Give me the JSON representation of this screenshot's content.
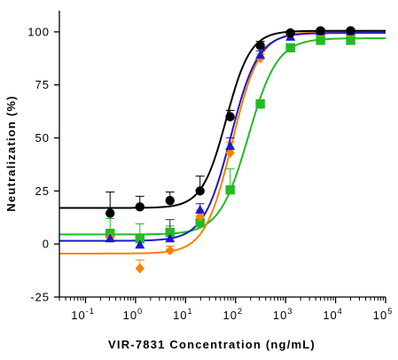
{
  "chart_data": {
    "type": "scatter",
    "title": "",
    "xlabel": "VIR-7831 Concentration (ng/mL)",
    "ylabel": "Neutralization (%)",
    "xscale": "log",
    "xlim": [
      0.03,
      100000
    ],
    "ylim": [
      -25,
      110
    ],
    "y_ticks": [
      -25,
      0,
      25,
      50,
      75,
      100
    ],
    "x_ticks": [
      {
        "value": 0.1,
        "base": "10",
        "exp": "-1"
      },
      {
        "value": 1,
        "base": "10",
        "exp": "0"
      },
      {
        "value": 10,
        "base": "10",
        "exp": "1"
      },
      {
        "value": 100,
        "base": "10",
        "exp": "2"
      },
      {
        "value": 1000,
        "base": "10",
        "exp": "3"
      },
      {
        "value": 10000,
        "base": "10",
        "exp": "4"
      },
      {
        "value": 100000,
        "base": "10",
        "exp": "5"
      }
    ],
    "legend": "none",
    "grid": false,
    "curve": "four-parameter logistic fit",
    "series": [
      {
        "marker": "square",
        "color": "#22bb22",
        "x": [
          0.31,
          1.22,
          4.88,
          19.5,
          78,
          312,
          1250,
          5000,
          20000
        ],
        "y": [
          5,
          2.5,
          5.5,
          10,
          25.5,
          66,
          92.5,
          96,
          96
        ],
        "err": [
          7,
          7,
          3,
          3,
          10,
          2,
          1.5,
          1,
          1
        ],
        "fit": {
          "bottom": 4.5,
          "top": 97,
          "ec50": 180,
          "hill": 1.5
        }
      },
      {
        "marker": "diamond",
        "color": "#ff8000",
        "x": [
          0.31,
          1.22,
          4.88,
          19.5,
          78,
          312,
          1250,
          5000,
          20000
        ],
        "y": [
          3,
          -11.5,
          -3,
          13,
          43,
          87.5,
          98.5,
          100,
          100
        ],
        "err": [
          2,
          4,
          2,
          3,
          5,
          2,
          1,
          1,
          1
        ],
        "fit": {
          "bottom": -4.5,
          "top": 100,
          "ec50": 85,
          "hill": 1.6
        }
      },
      {
        "marker": "triangle",
        "color": "#1a1acc",
        "x": [
          0.31,
          1.22,
          4.88,
          19.5,
          78,
          312,
          1250,
          5000,
          20000
        ],
        "y": [
          2.5,
          -0.5,
          2.5,
          16,
          46,
          89,
          97.5,
          100,
          100
        ],
        "err": [
          2,
          2,
          9,
          3,
          4,
          2,
          1,
          1,
          1
        ],
        "fit": {
          "bottom": 1.5,
          "top": 99.5,
          "ec50": 80,
          "hill": 1.6
        }
      },
      {
        "marker": "circle",
        "color": "#000000",
        "x": [
          0.31,
          1.22,
          4.88,
          19.5,
          78,
          312,
          1250,
          5000,
          20000
        ],
        "y": [
          14.5,
          17.5,
          20.5,
          25,
          60,
          93.5,
          99.5,
          100.5,
          100.5
        ],
        "err": [
          10,
          5,
          4,
          7,
          3,
          2,
          1,
          1,
          1
        ],
        "fit": {
          "bottom": 17,
          "top": 100.5,
          "ec50": 65,
          "hill": 1.8
        }
      }
    ]
  }
}
